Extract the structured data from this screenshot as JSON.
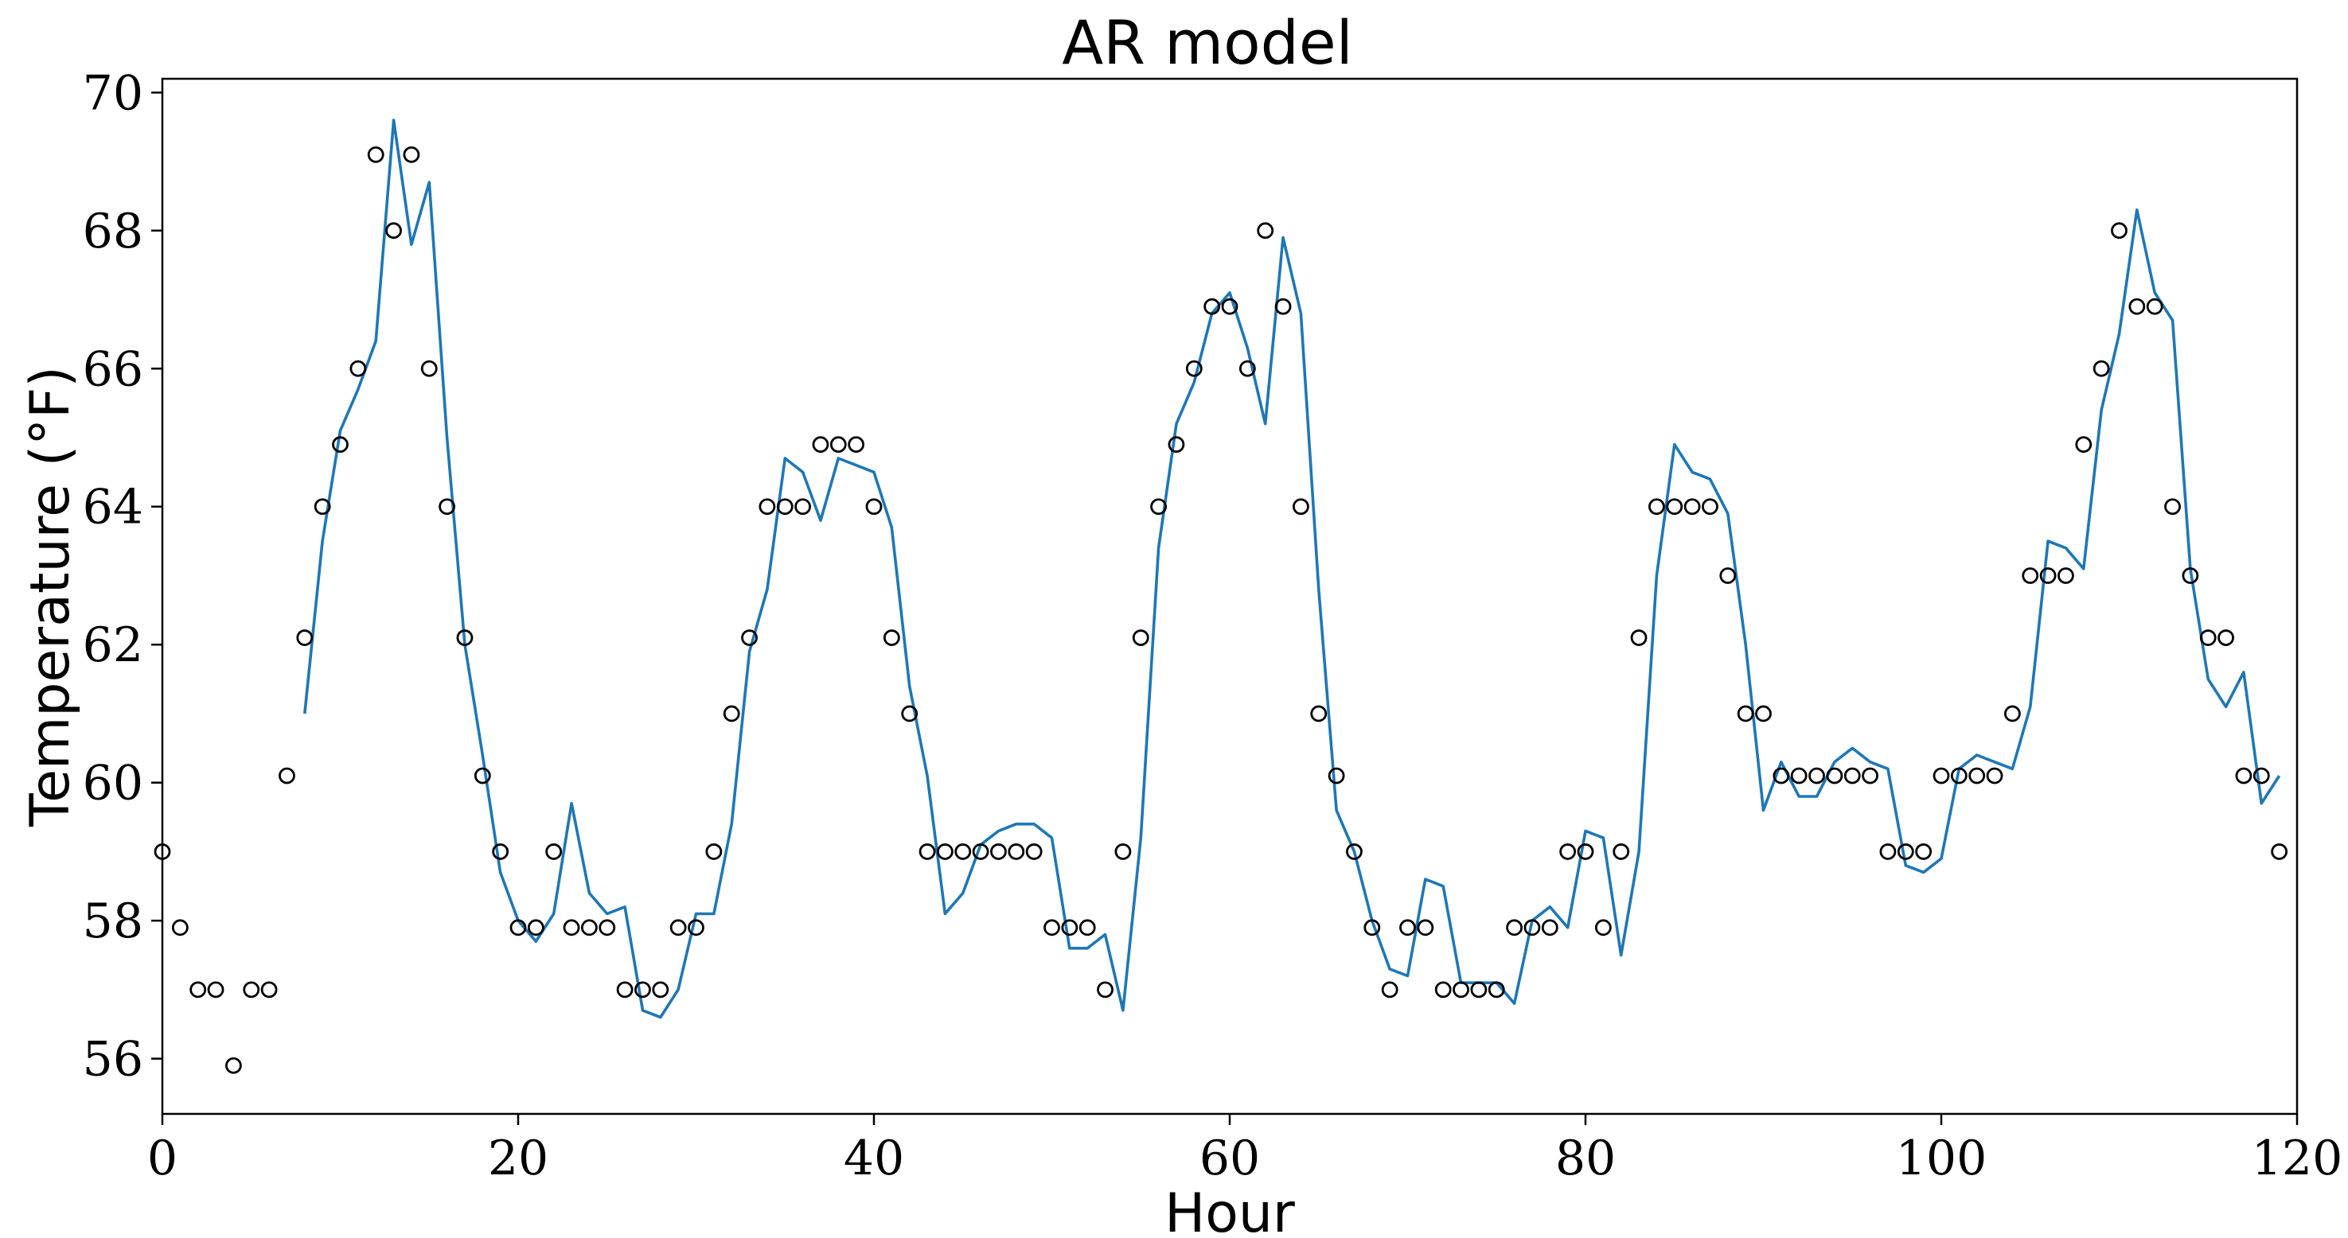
{
  "chart_data": {
    "type": "line",
    "title": "AR model",
    "xlabel": "Hour",
    "ylabel": "Temperature (°F)",
    "xlim": [
      0,
      120
    ],
    "ylim": [
      55.2,
      70.2
    ],
    "xticks": [
      0,
      20,
      40,
      60,
      80,
      100,
      120
    ],
    "yticks": [
      56,
      58,
      60,
      62,
      64,
      66,
      68,
      70
    ],
    "grid": false,
    "colors": {
      "observed": "#000000",
      "fitted": "#1f77b4"
    },
    "series": [
      {
        "style": "scatter-open-circle",
        "x": [
          0,
          1,
          2,
          3,
          4,
          5,
          6,
          7,
          8,
          9,
          10,
          11,
          12,
          13,
          14,
          15,
          16,
          17,
          18,
          19,
          20,
          21,
          22,
          23,
          24,
          25,
          26,
          27,
          28,
          29,
          30,
          31,
          32,
          33,
          34,
          35,
          36,
          37,
          38,
          39,
          40,
          41,
          42,
          43,
          44,
          45,
          46,
          47,
          48,
          49,
          50,
          51,
          52,
          53,
          54,
          55,
          56,
          57,
          58,
          59,
          60,
          61,
          62,
          63,
          64,
          65,
          66,
          67,
          68,
          69,
          70,
          71,
          72,
          73,
          74,
          75,
          76,
          77,
          78,
          79,
          80,
          81,
          82,
          83,
          84,
          85,
          86,
          87,
          88,
          89,
          90,
          91,
          92,
          93,
          94,
          95,
          96,
          97,
          98,
          99,
          100,
          101,
          102,
          103,
          104,
          105,
          106,
          107,
          108,
          109,
          110,
          111,
          112,
          113,
          114,
          115,
          116,
          117,
          118,
          119
        ],
        "values": [
          59.0,
          57.9,
          57.0,
          57.0,
          55.9,
          57.0,
          57.0,
          60.1,
          62.1,
          64.0,
          64.9,
          66.0,
          69.1,
          68.0,
          69.1,
          66.0,
          64.0,
          62.1,
          60.1,
          59.0,
          57.9,
          57.9,
          59.0,
          57.9,
          57.9,
          57.9,
          57.0,
          57.0,
          57.0,
          57.9,
          57.9,
          59.0,
          61.0,
          62.1,
          64.0,
          64.0,
          64.0,
          64.9,
          64.9,
          64.9,
          64.0,
          62.1,
          61.0,
          59.0,
          59.0,
          59.0,
          59.0,
          59.0,
          59.0,
          59.0,
          57.9,
          57.9,
          57.9,
          57.0,
          59.0,
          62.1,
          64.0,
          64.9,
          66.0,
          66.9,
          66.9,
          66.0,
          68.0,
          66.9,
          64.0,
          61.0,
          60.1,
          59.0,
          57.9,
          57.0,
          57.9,
          57.9,
          57.0,
          57.0,
          57.0,
          57.0,
          57.9,
          57.9,
          57.9,
          59.0,
          59.0,
          57.9,
          59.0,
          62.1,
          64.0,
          64.0,
          64.0,
          64.0,
          63.0,
          61.0,
          61.0,
          60.1,
          60.1,
          60.1,
          60.1,
          60.1,
          60.1,
          59.0,
          59.0,
          59.0,
          60.1,
          60.1,
          60.1,
          60.1,
          61.0,
          63.0,
          63.0,
          63.0,
          64.9,
          66.0,
          68.0,
          66.9,
          66.9,
          64.0,
          63.0,
          62.1,
          62.1,
          60.1,
          60.1,
          59.0
        ]
      },
      {
        "style": "line",
        "x": [
          8,
          9,
          10,
          11,
          12,
          13,
          14,
          15,
          16,
          17,
          18,
          19,
          20,
          21,
          22,
          23,
          24,
          25,
          26,
          27,
          28,
          29,
          30,
          31,
          32,
          33,
          34,
          35,
          36,
          37,
          38,
          39,
          40,
          41,
          42,
          43,
          44,
          45,
          46,
          47,
          48,
          49,
          50,
          51,
          52,
          53,
          54,
          55,
          56,
          57,
          58,
          59,
          60,
          61,
          62,
          63,
          64,
          65,
          66,
          67,
          68,
          69,
          70,
          71,
          72,
          73,
          74,
          75,
          76,
          77,
          78,
          79,
          80,
          81,
          82,
          83,
          84,
          85,
          86,
          87,
          88,
          89,
          90,
          91,
          92,
          93,
          94,
          95,
          96,
          97,
          98,
          99,
          100,
          101,
          102,
          103,
          104,
          105,
          106,
          107,
          108,
          109,
          110,
          111,
          112,
          113,
          114,
          115,
          116,
          117,
          118,
          119
        ],
        "values": [
          61.0,
          63.5,
          65.1,
          65.7,
          66.4,
          69.6,
          67.8,
          68.7,
          65.0,
          62.0,
          60.4,
          58.7,
          58.0,
          57.7,
          58.1,
          59.7,
          58.4,
          58.1,
          58.2,
          56.7,
          56.6,
          57.0,
          58.1,
          58.1,
          59.4,
          61.9,
          62.8,
          64.7,
          64.5,
          63.8,
          64.7,
          64.6,
          64.5,
          63.7,
          61.4,
          60.1,
          58.1,
          58.4,
          59.1,
          59.3,
          59.4,
          59.4,
          59.2,
          57.6,
          57.6,
          57.8,
          56.7,
          59.2,
          63.4,
          65.2,
          65.8,
          66.8,
          67.1,
          66.3,
          65.2,
          67.9,
          66.8,
          62.8,
          59.6,
          59.0,
          58.0,
          57.3,
          57.2,
          58.6,
          58.5,
          57.1,
          57.1,
          57.1,
          56.8,
          58.0,
          58.2,
          57.9,
          59.3,
          59.2,
          57.5,
          59.0,
          63.0,
          64.9,
          64.5,
          64.4,
          63.9,
          62.0,
          59.6,
          60.3,
          59.8,
          59.8,
          60.3,
          60.5,
          60.3,
          60.2,
          58.8,
          58.7,
          58.9,
          60.2,
          60.4,
          60.3,
          60.2,
          61.1,
          63.5,
          63.4,
          63.1,
          65.4,
          66.5,
          68.3,
          67.1,
          66.7,
          63.1,
          61.5,
          61.1,
          61.6,
          59.7,
          60.1
        ]
      }
    ]
  }
}
